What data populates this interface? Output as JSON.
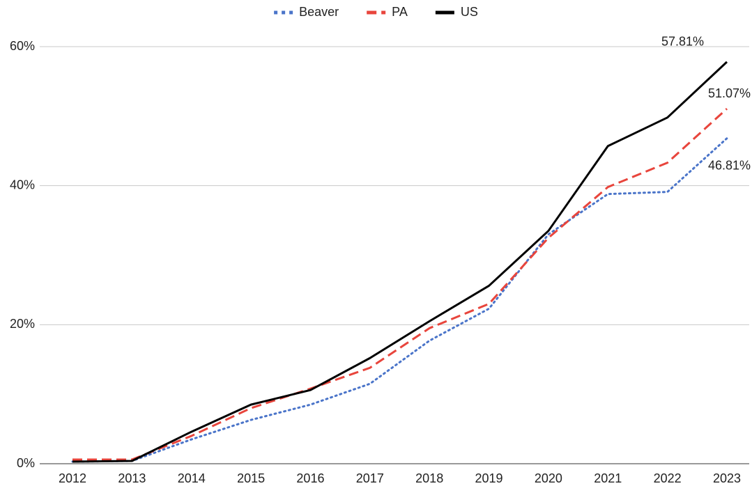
{
  "chart_data": {
    "type": "line",
    "categories": [
      "2012",
      "2013",
      "2014",
      "2015",
      "2016",
      "2017",
      "2018",
      "2019",
      "2020",
      "2021",
      "2022",
      "2023"
    ],
    "series": [
      {
        "name": "Beaver",
        "color": "#4a74c9",
        "style": "dotted",
        "values": [
          0.3,
          0.4,
          3.5,
          6.3,
          8.5,
          11.5,
          17.7,
          22.3,
          33,
          38.8,
          39.1,
          46.81
        ],
        "value_labels": [
          null,
          null,
          null,
          null,
          null,
          null,
          null,
          null,
          null,
          null,
          null,
          "46.81%"
        ]
      },
      {
        "name": "PA",
        "color": "#e8453c",
        "style": "dashed",
        "values": [
          0.6,
          0.6,
          4,
          8,
          10.8,
          13.8,
          19.5,
          23,
          32.5,
          39.8,
          43.3,
          51.07
        ],
        "value_labels": [
          null,
          null,
          null,
          null,
          null,
          null,
          null,
          null,
          null,
          null,
          null,
          "51.07%"
        ]
      },
      {
        "name": "US",
        "color": "#000000",
        "style": "solid",
        "values": [
          0.3,
          0.4,
          4.6,
          8.5,
          10.6,
          15.2,
          20.5,
          25.6,
          33.5,
          45.7,
          49.8,
          57.81
        ],
        "value_labels": [
          null,
          null,
          null,
          null,
          null,
          null,
          null,
          null,
          null,
          null,
          null,
          "57.81%"
        ]
      }
    ],
    "ylim": [
      0,
      60
    ],
    "yticks": [
      {
        "value": 0,
        "label": "0%"
      },
      {
        "value": 20,
        "label": "20%"
      },
      {
        "value": 40,
        "label": "40%"
      },
      {
        "value": 60,
        "label": "60%"
      }
    ],
    "grid": true,
    "legend": "top"
  }
}
